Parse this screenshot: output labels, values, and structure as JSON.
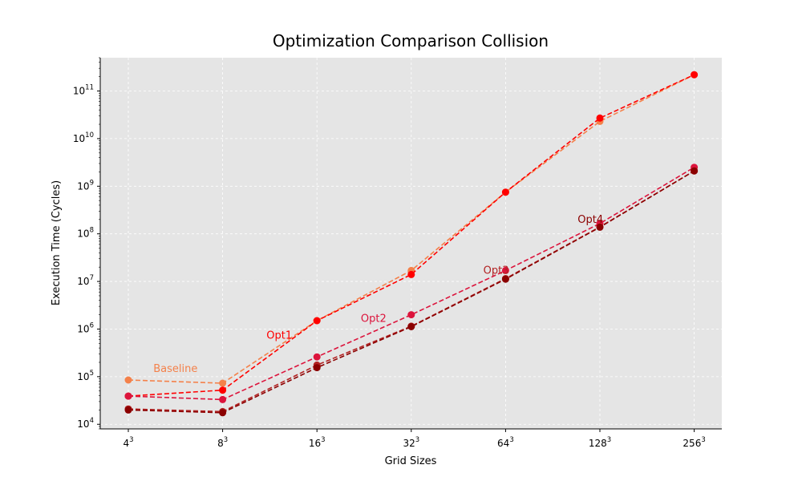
{
  "chart_data": {
    "type": "line",
    "title": "Optimization Comparison Collision",
    "xlabel": "Grid Sizes",
    "ylabel": "Execution Time (Cycles)",
    "y_scale": "log",
    "ylim": [
      8000,
      500000000000
    ],
    "grid": true,
    "categories": [
      {
        "base": "4",
        "exp": "3"
      },
      {
        "base": "8",
        "exp": "3"
      },
      {
        "base": "16",
        "exp": "3"
      },
      {
        "base": "32",
        "exp": "3"
      },
      {
        "base": "64",
        "exp": "3"
      },
      {
        "base": "128",
        "exp": "3"
      },
      {
        "base": "256",
        "exp": "3"
      }
    ],
    "y_ticks": [
      {
        "base": "10",
        "exp": "4",
        "value": 10000
      },
      {
        "base": "10",
        "exp": "5",
        "value": 100000
      },
      {
        "base": "10",
        "exp": "6",
        "value": 1000000
      },
      {
        "base": "10",
        "exp": "7",
        "value": 10000000
      },
      {
        "base": "10",
        "exp": "8",
        "value": 100000000
      },
      {
        "base": "10",
        "exp": "9",
        "value": 1000000000
      },
      {
        "base": "10",
        "exp": "10",
        "value": 10000000000
      },
      {
        "base": "10",
        "exp": "11",
        "value": 100000000000
      }
    ],
    "series": [
      {
        "name": "Baseline",
        "color": "#f4814a",
        "label_at": 0.5,
        "values": [
          85000,
          73000,
          1500000,
          17000000,
          750000000,
          23000000000,
          220000000000
        ]
      },
      {
        "name": "Opt1",
        "color": "#ff0000",
        "label_at": 1.6,
        "values": [
          39000,
          52000,
          1500000,
          14000000,
          750000000,
          27000000000,
          220000000000
        ]
      },
      {
        "name": "Opt2",
        "color": "#dc143c",
        "label_at": 2.6,
        "values": [
          39000,
          33000,
          260000,
          2000000,
          17000000,
          165000000,
          2500000000
        ]
      },
      {
        "name": "Opt3",
        "color": "#b22222",
        "label_at": 3.9,
        "values": [
          21000,
          18500,
          175000,
          1150000,
          11500000,
          140000000,
          2100000000
        ]
      },
      {
        "name": "Opt4",
        "color": "#8b0000",
        "label_at": 4.9,
        "values": [
          20000,
          17500,
          155000,
          1120000,
          11200000,
          138000000,
          2100000000
        ]
      }
    ]
  }
}
